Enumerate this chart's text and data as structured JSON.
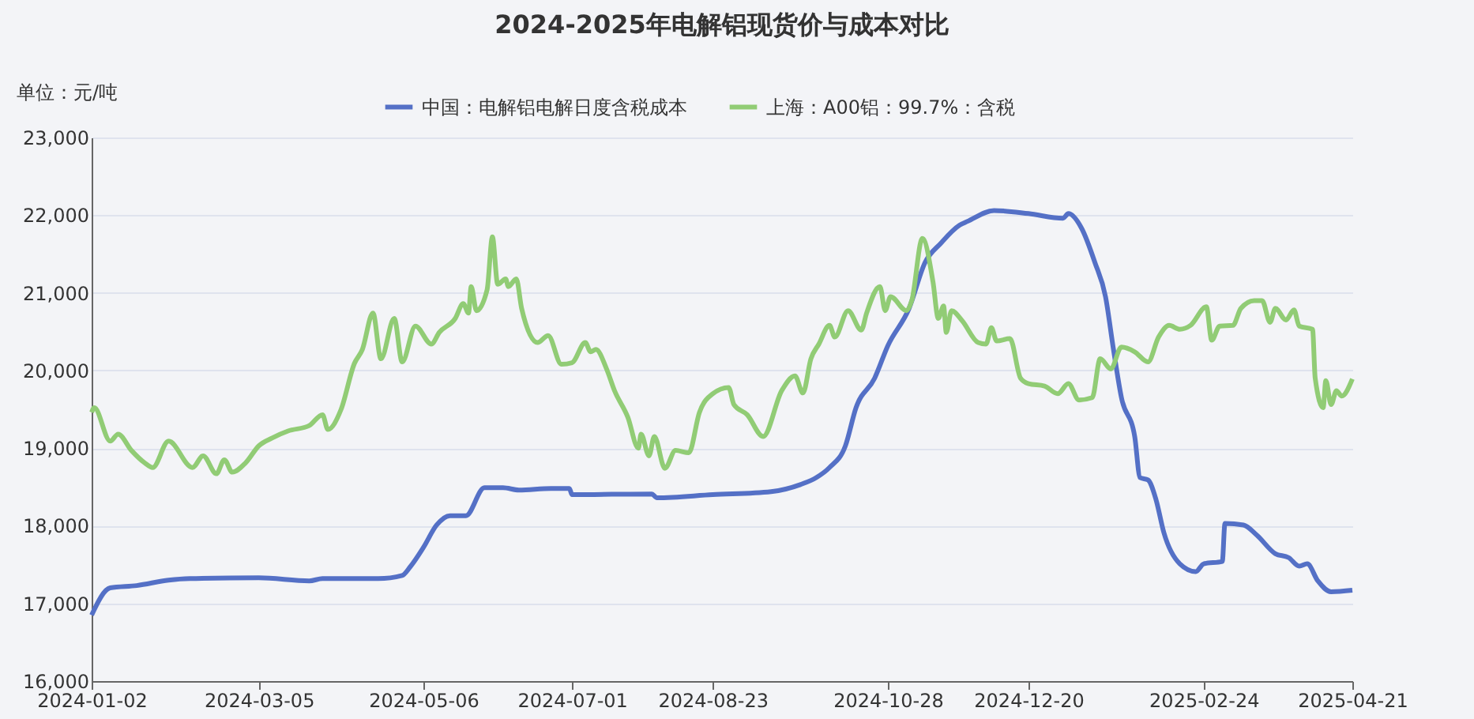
{
  "chart_data": {
    "type": "line",
    "title": "2024-2025年电解铝现货价与成本对比",
    "ylabel": "单位：元/吨",
    "xlim": [
      "2024-01-02",
      "2025-04-21"
    ],
    "xticks": [
      "2024-01-02",
      "2024-03-05",
      "2024-05-06",
      "2024-07-01",
      "2024-08-23",
      "2024-10-28",
      "2024-12-20",
      "2025-02-24",
      "2025-04-21"
    ],
    "ylim": [
      16000,
      23000
    ],
    "yticks": [
      {
        "value": 16000,
        "label": "16,000"
      },
      {
        "value": 17000,
        "label": "17,000"
      },
      {
        "value": 18000,
        "label": "18,000"
      },
      {
        "value": 19000,
        "label": "19,000"
      },
      {
        "value": 20000,
        "label": "20,000"
      },
      {
        "value": 21000,
        "label": "21,000"
      },
      {
        "value": 22000,
        "label": "22,000"
      },
      {
        "value": 23000,
        "label": "23,000"
      }
    ],
    "grid": "y",
    "legend": "top",
    "line_style": "solid",
    "series": [
      {
        "name": "中国：电解铝电解日度含税成本",
        "color": "#5470c6",
        "x": [
          "2024-01-02",
          "2024-01-09",
          "2024-01-19",
          "2024-01-31",
          "2024-02-08",
          "2024-03-05",
          "2024-03-24",
          "2024-03-29",
          "2024-04-19",
          "2024-04-28",
          "2024-05-01",
          "2024-05-06",
          "2024-05-11",
          "2024-05-16",
          "2024-05-22",
          "2024-05-29",
          "2024-06-05",
          "2024-06-11",
          "2024-06-23",
          "2024-06-30",
          "2024-07-01",
          "2024-07-31",
          "2024-08-02",
          "2024-08-23",
          "2024-09-14",
          "2024-09-25",
          "2024-10-01",
          "2024-10-06",
          "2024-10-12",
          "2024-10-16",
          "2024-10-23",
          "2024-10-28",
          "2024-11-05",
          "2024-11-11",
          "2024-11-17",
          "2024-11-24",
          "2024-11-27",
          "2024-12-07",
          "2024-12-20",
          "2025-01-02",
          "2025-01-04",
          "2025-01-09",
          "2025-01-14",
          "2025-01-18",
          "2025-01-21",
          "2025-01-24",
          "2025-01-29",
          "2025-01-31",
          "2025-02-03",
          "2025-02-06",
          "2025-02-09",
          "2025-02-15",
          "2025-02-21",
          "2025-02-24",
          "2025-03-03",
          "2025-03-04",
          "2025-03-11",
          "2025-03-16",
          "2025-03-23",
          "2025-03-28",
          "2025-04-01",
          "2025-04-04",
          "2025-04-08",
          "2025-04-13",
          "2025-04-21"
        ],
        "values": [
          16850,
          17200,
          17230,
          17300,
          17320,
          17330,
          17290,
          17320,
          17320,
          17360,
          17470,
          17720,
          18010,
          18130,
          18130,
          18490,
          18490,
          18460,
          18480,
          18480,
          18400,
          18410,
          18360,
          18400,
          18440,
          18530,
          18620,
          18750,
          19030,
          19520,
          19900,
          20320,
          20800,
          21390,
          21640,
          21870,
          21920,
          22060,
          22020,
          21960,
          22020,
          21830,
          21390,
          20950,
          20270,
          19650,
          19150,
          18620,
          18590,
          18340,
          17910,
          17510,
          17410,
          17510,
          17540,
          18030,
          18010,
          17880,
          17640,
          17590,
          17480,
          17510,
          17290,
          17150,
          17170
        ]
      },
      {
        "name": "上海：A00铝：99.7%：含税",
        "color": "#91cc75",
        "x": [
          "2024-01-02",
          "2024-01-03",
          "2024-01-09",
          "2024-01-12",
          "2024-01-17",
          "2024-01-22",
          "2024-01-25",
          "2024-01-31",
          "2024-02-09",
          "2024-02-13",
          "2024-02-18",
          "2024-02-21",
          "2024-02-24",
          "2024-02-29",
          "2024-03-05",
          "2024-03-10",
          "2024-03-16",
          "2024-03-24",
          "2024-03-29",
          "2024-03-31",
          "2024-04-05",
          "2024-04-10",
          "2024-04-13",
          "2024-04-17",
          "2024-04-20",
          "2024-04-25",
          "2024-04-28",
          "2024-05-03",
          "2024-05-09",
          "2024-05-12",
          "2024-05-18",
          "2024-05-21",
          "2024-05-23",
          "2024-05-24",
          "2024-05-26",
          "2024-05-30",
          "2024-06-01",
          "2024-06-03",
          "2024-06-06",
          "2024-06-07",
          "2024-06-10",
          "2024-06-12",
          "2024-06-18",
          "2024-06-22",
          "2024-06-27",
          "2024-07-01",
          "2024-07-06",
          "2024-07-08",
          "2024-07-10",
          "2024-07-14",
          "2024-07-17",
          "2024-07-22",
          "2024-07-26",
          "2024-07-27",
          "2024-07-30",
          "2024-08-01",
          "2024-08-05",
          "2024-08-09",
          "2024-08-14",
          "2024-08-18",
          "2024-08-23",
          "2024-08-29",
          "2024-08-31",
          "2024-09-05",
          "2024-09-11",
          "2024-09-18",
          "2024-09-23",
          "2024-09-26",
          "2024-09-29",
          "2024-10-02",
          "2024-10-06",
          "2024-10-08",
          "2024-10-13",
          "2024-10-18",
          "2024-10-20",
          "2024-10-25",
          "2024-10-27",
          "2024-10-29",
          "2024-11-04",
          "2024-11-06",
          "2024-11-10",
          "2024-11-14",
          "2024-11-16",
          "2024-11-18",
          "2024-11-19",
          "2024-11-21",
          "2024-11-25",
          "2024-12-01",
          "2024-12-04",
          "2024-12-06",
          "2024-12-08",
          "2024-12-13",
          "2024-12-17",
          "2024-12-20",
          "2024-12-26",
          "2024-12-31",
          "2025-01-04",
          "2025-01-08",
          "2025-01-13",
          "2025-01-16",
          "2025-01-20",
          "2025-01-24",
          "2025-01-29",
          "2025-02-03",
          "2025-02-07",
          "2025-02-11",
          "2025-02-15",
          "2025-02-19",
          "2025-02-25",
          "2025-02-27",
          "2025-03-02",
          "2025-03-07",
          "2025-03-10",
          "2025-03-15",
          "2025-03-18",
          "2025-03-21",
          "2025-03-23",
          "2025-03-27",
          "2025-03-30",
          "2025-04-01",
          "2025-04-06",
          "2025-04-07",
          "2025-04-10",
          "2025-04-11",
          "2025-04-13",
          "2025-04-15",
          "2025-04-17",
          "2025-04-21"
        ],
        "values": [
          19460,
          19520,
          19090,
          19180,
          18970,
          18810,
          18750,
          19090,
          18750,
          18900,
          18670,
          18850,
          18690,
          18810,
          19030,
          19130,
          19220,
          19290,
          19430,
          19240,
          19500,
          20090,
          20270,
          20740,
          20150,
          20670,
          20110,
          20570,
          20340,
          20490,
          20670,
          20860,
          20740,
          21080,
          20770,
          21040,
          21720,
          21110,
          21180,
          21080,
          21180,
          20800,
          20360,
          20450,
          20080,
          20100,
          20360,
          20240,
          20270,
          20020,
          19740,
          19400,
          19000,
          19180,
          18900,
          19150,
          18740,
          18970,
          18940,
          19460,
          19700,
          19780,
          19560,
          19430,
          19150,
          19740,
          19930,
          19710,
          20150,
          20340,
          20580,
          20430,
          20770,
          20520,
          20740,
          21080,
          20770,
          20950,
          20770,
          20900,
          21700,
          21140,
          20670,
          20830,
          20490,
          20770,
          20640,
          20360,
          20340,
          20550,
          20380,
          20410,
          19900,
          19830,
          19800,
          19700,
          19830,
          19620,
          19650,
          20150,
          20020,
          20300,
          20240,
          20110,
          20430,
          20580,
          20530,
          20580,
          20820,
          20390,
          20570,
          20580,
          20800,
          20900,
          20900,
          20620,
          20800,
          20650,
          20780,
          20570,
          20530,
          19900,
          19520,
          19870,
          19560,
          19740,
          19670,
          19890
        ]
      }
    ]
  }
}
